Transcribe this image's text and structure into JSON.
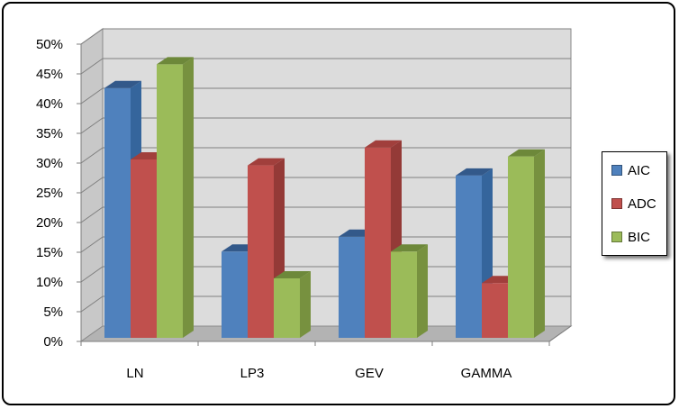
{
  "chart_data": {
    "type": "bar",
    "title": "",
    "xlabel": "",
    "ylabel": "",
    "categories": [
      "LN",
      "LP3",
      "GEV",
      "GAMMA"
    ],
    "series": [
      {
        "name": "AIC",
        "color": "#4f81bd",
        "side": "#35659c",
        "top": "#33598a",
        "values": [
          42,
          14.5,
          17,
          27.3
        ]
      },
      {
        "name": "ADC",
        "color": "#c0504d",
        "side": "#943a37",
        "top": "#a13f3c",
        "values": [
          30,
          29,
          32,
          9.2
        ]
      },
      {
        "name": "BIC",
        "color": "#9bbb59",
        "side": "#77913f",
        "top": "#6d883a",
        "values": [
          46,
          10,
          14.5,
          30.5
        ]
      }
    ],
    "ylim": [
      0,
      50
    ],
    "yticks": [
      "0%",
      "5%",
      "10%",
      "15%",
      "20%",
      "25%",
      "30%",
      "35%",
      "40%",
      "45%",
      "50%"
    ],
    "grid": true,
    "legend": "right"
  }
}
